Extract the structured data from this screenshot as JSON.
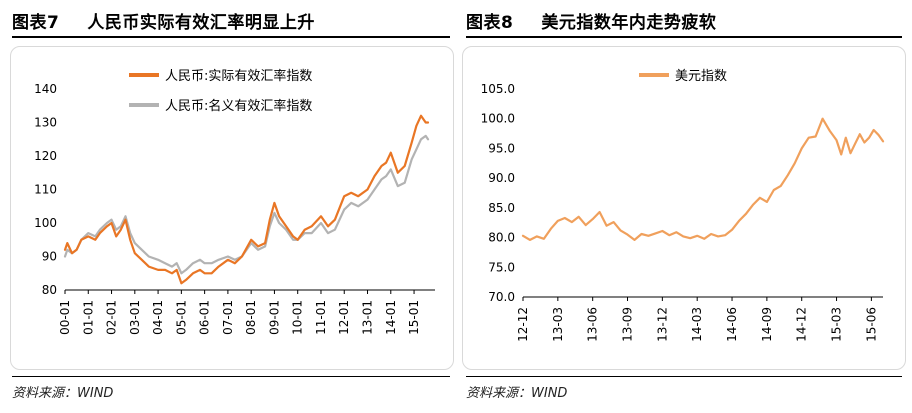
{
  "left_figure": {
    "label": "图表7",
    "title": "人民币实际有效汇率明显上升",
    "source": "资料来源：WIND"
  },
  "right_figure": {
    "label": "图表8",
    "title": "美元指数年内走势疲软",
    "source": "资料来源：WIND"
  },
  "colors": {
    "real": "#e97625",
    "nominal": "#b3b3b3",
    "usd": "#f0a05c"
  },
  "chart_data": [
    {
      "type": "line",
      "title": "人民币实际有效汇率明显上升",
      "ylim": [
        80,
        140
      ],
      "yticks": [
        80,
        90,
        100,
        110,
        120,
        130,
        140
      ],
      "xlim": [
        0,
        15.9
      ],
      "xticks": [
        0,
        1,
        2,
        3,
        4,
        5,
        6,
        7,
        8,
        9,
        10,
        11,
        12,
        13,
        14,
        15
      ],
      "xtick_labels": [
        "00-01",
        "01-01",
        "02-01",
        "03-01",
        "04-01",
        "05-01",
        "06-01",
        "07-01",
        "08-01",
        "09-01",
        "10-01",
        "11-01",
        "12-01",
        "13-01",
        "14-01",
        "15-01"
      ],
      "legend": "top",
      "series": [
        {
          "name": "人民币:实际有效汇率指数",
          "color_key": "real",
          "x": [
            0,
            0.1,
            0.3,
            0.5,
            0.7,
            1.0,
            1.3,
            1.5,
            1.8,
            2.0,
            2.2,
            2.4,
            2.6,
            2.8,
            3.0,
            3.3,
            3.6,
            4.0,
            4.3,
            4.6,
            4.8,
            5.0,
            5.2,
            5.5,
            5.8,
            6.0,
            6.3,
            6.6,
            7.0,
            7.3,
            7.6,
            8.0,
            8.3,
            8.6,
            8.8,
            9.0,
            9.2,
            9.5,
            9.8,
            10.0,
            10.3,
            10.6,
            11.0,
            11.3,
            11.6,
            12.0,
            12.3,
            12.6,
            13.0,
            13.3,
            13.6,
            13.8,
            14.0,
            14.3,
            14.6,
            14.9,
            15.1,
            15.3,
            15.5,
            15.6
          ],
          "y": [
            92,
            94,
            91,
            92,
            95,
            96,
            95,
            97,
            99,
            100,
            96,
            98,
            101,
            95,
            91,
            89,
            87,
            86,
            86,
            85,
            86,
            82,
            83,
            85,
            86,
            85,
            85,
            87,
            89,
            88,
            90,
            95,
            93,
            94,
            101,
            106,
            102,
            99,
            96,
            95,
            98,
            99,
            102,
            99,
            101,
            108,
            109,
            108,
            110,
            114,
            117,
            118,
            121,
            115,
            117,
            124,
            129,
            132,
            130,
            130
          ]
        },
        {
          "name": "人民币:名义有效汇率指数",
          "color_key": "nominal",
          "x": [
            0,
            0.1,
            0.3,
            0.5,
            0.7,
            1.0,
            1.3,
            1.5,
            1.8,
            2.0,
            2.2,
            2.4,
            2.6,
            2.8,
            3.0,
            3.3,
            3.6,
            4.0,
            4.3,
            4.6,
            4.8,
            5.0,
            5.2,
            5.5,
            5.8,
            6.0,
            6.3,
            6.6,
            7.0,
            7.3,
            7.6,
            8.0,
            8.3,
            8.6,
            8.8,
            9.0,
            9.2,
            9.5,
            9.8,
            10.0,
            10.3,
            10.6,
            11.0,
            11.3,
            11.6,
            12.0,
            12.3,
            12.6,
            13.0,
            13.3,
            13.6,
            13.8,
            14.0,
            14.3,
            14.6,
            14.9,
            15.1,
            15.3,
            15.5,
            15.6
          ],
          "y": [
            90,
            92,
            91,
            92,
            95,
            97,
            96,
            98,
            100,
            101,
            98,
            99,
            102,
            97,
            94,
            92,
            90,
            89,
            88,
            87,
            88,
            85,
            86,
            88,
            89,
            88,
            88,
            89,
            90,
            89,
            90,
            94,
            92,
            93,
            99,
            103,
            100,
            98,
            95,
            95,
            97,
            97,
            100,
            97,
            98,
            104,
            106,
            105,
            107,
            110,
            113,
            114,
            116,
            111,
            112,
            119,
            122,
            125,
            126,
            125
          ]
        }
      ]
    },
    {
      "type": "line",
      "title": "美元指数年内走势疲软",
      "ylim": [
        70,
        105
      ],
      "yticks": [
        70.0,
        75.0,
        80.0,
        85.0,
        90.0,
        95.0,
        100.0,
        105.0
      ],
      "xlim": [
        0,
        15.5
      ],
      "xticks": [
        0,
        1.5,
        3,
        4.5,
        6,
        7.5,
        9,
        10.5,
        12,
        13.5,
        15
      ],
      "xtick_labels": [
        "12-12",
        "13-03",
        "13-06",
        "13-09",
        "13-12",
        "14-03",
        "14-06",
        "14-09",
        "14-12",
        "15-03",
        "15-06"
      ],
      "legend": "top-left",
      "series": [
        {
          "name": "美元指数",
          "color_key": "usd",
          "x": [
            0,
            0.3,
            0.6,
            0.9,
            1.2,
            1.5,
            1.8,
            2.1,
            2.4,
            2.7,
            3.0,
            3.3,
            3.6,
            3.9,
            4.2,
            4.5,
            4.8,
            5.1,
            5.4,
            5.7,
            6.0,
            6.3,
            6.6,
            6.9,
            7.2,
            7.5,
            7.8,
            8.1,
            8.4,
            8.7,
            9.0,
            9.3,
            9.6,
            9.9,
            10.2,
            10.5,
            10.8,
            11.1,
            11.4,
            11.7,
            12.0,
            12.3,
            12.6,
            12.9,
            13.2,
            13.5,
            13.7,
            13.9,
            14.1,
            14.3,
            14.5,
            14.7,
            14.9,
            15.1,
            15.3,
            15.5
          ],
          "y": [
            80.3,
            79.6,
            80.2,
            79.8,
            81.5,
            82.8,
            83.3,
            82.6,
            83.5,
            82.1,
            83.1,
            84.3,
            82.0,
            82.6,
            81.2,
            80.5,
            79.6,
            80.6,
            80.3,
            80.7,
            81.1,
            80.4,
            80.9,
            80.2,
            79.9,
            80.3,
            79.8,
            80.6,
            80.2,
            80.4,
            81.3,
            82.8,
            84.0,
            85.5,
            86.7,
            86.0,
            88.0,
            88.7,
            90.5,
            92.5,
            95.0,
            96.8,
            97.0,
            100.0,
            98.0,
            96.4,
            94.0,
            96.8,
            94.2,
            95.8,
            97.4,
            96.0,
            96.8,
            98.1,
            97.3,
            96.2
          ]
        }
      ]
    }
  ]
}
